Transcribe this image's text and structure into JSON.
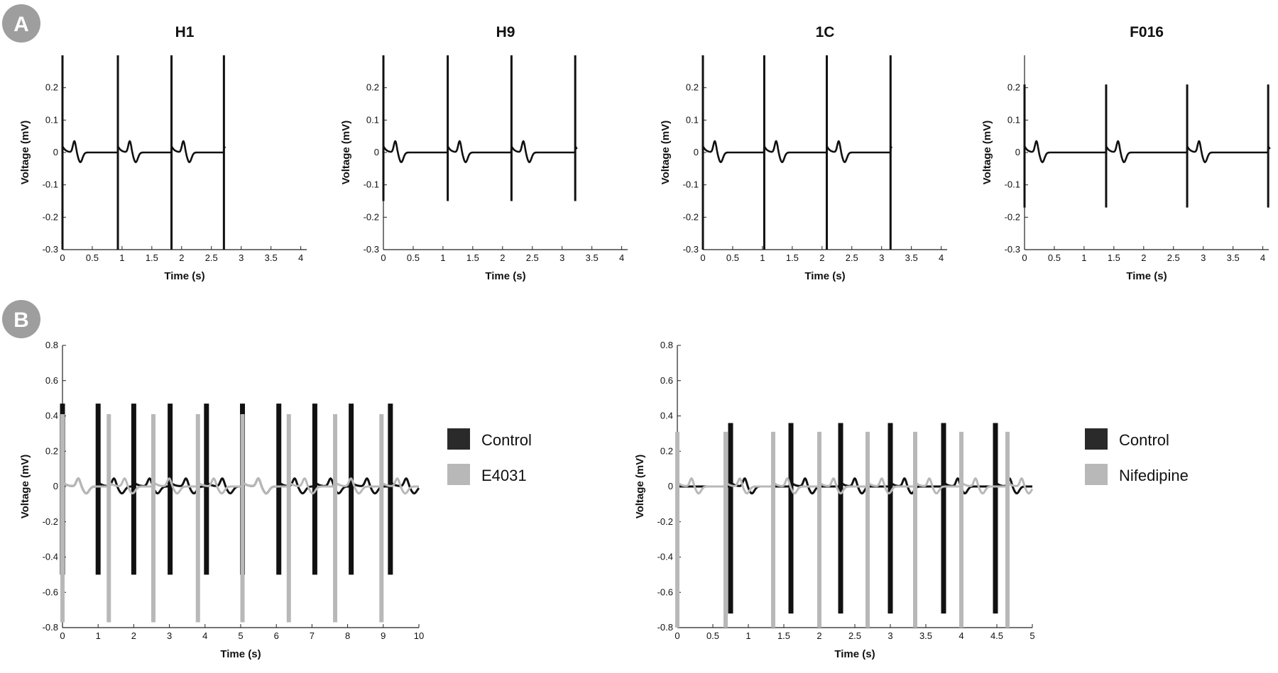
{
  "panels": {
    "A": {
      "label": "A"
    },
    "B": {
      "label": "B"
    }
  },
  "colors": {
    "trace": "#111111",
    "control": "#111111",
    "drug": "#b8b8b8",
    "badge": "#9e9e9e"
  },
  "chart_data": [
    {
      "type": "line",
      "panel": "A",
      "title": "H1",
      "xlabel": "Time (s)",
      "ylabel": "Voltage (mV)",
      "xlim": [
        0,
        4.1
      ],
      "ylim": [
        -0.3,
        0.3
      ],
      "xticks": [
        0,
        0.5,
        1,
        1.5,
        2,
        2.5,
        3,
        3.5,
        4
      ],
      "yticks": [
        -0.3,
        -0.2,
        -0.1,
        0,
        0.1,
        0.2
      ],
      "beats": [
        0,
        0.93,
        1.83,
        2.71
      ],
      "end": 2.73,
      "spike_high": 0.3,
      "spike_low": -0.3,
      "series": [
        {
          "values": "spiking field potential trace"
        }
      ]
    },
    {
      "type": "line",
      "panel": "A",
      "title": "H9",
      "xlabel": "Time (s)",
      "ylabel": "Voltage (mV)",
      "xlim": [
        0,
        4.1
      ],
      "ylim": [
        -0.3,
        0.3
      ],
      "xticks": [
        0,
        0.5,
        1,
        1.5,
        2,
        2.5,
        3,
        3.5,
        4
      ],
      "yticks": [
        -0.3,
        -0.2,
        -0.1,
        0,
        0.1,
        0.2
      ],
      "beats": [
        0,
        1.08,
        2.15,
        3.22
      ],
      "end": 3.25,
      "spike_high": 0.3,
      "spike_low": -0.15
    },
    {
      "type": "line",
      "panel": "A",
      "title": "1C",
      "xlabel": "Time (s)",
      "ylabel": "Voltage (mV)",
      "xlim": [
        0,
        4.1
      ],
      "ylim": [
        -0.3,
        0.3
      ],
      "xticks": [
        0,
        0.5,
        1,
        1.5,
        2,
        2.5,
        3,
        3.5,
        4
      ],
      "yticks": [
        -0.3,
        -0.2,
        -0.1,
        0,
        0.1,
        0.2
      ],
      "beats": [
        0,
        1.03,
        2.08,
        3.15
      ],
      "end": 3.17,
      "spike_high": 0.3,
      "spike_low": -0.3
    },
    {
      "type": "line",
      "panel": "A",
      "title": "F016",
      "xlabel": "Time (s)",
      "ylabel": "Voltage (mV)",
      "xlim": [
        0,
        4.1
      ],
      "ylim": [
        -0.3,
        0.3
      ],
      "xticks": [
        0,
        0.5,
        1,
        1.5,
        2,
        2.5,
        3,
        3.5,
        4
      ],
      "yticks": [
        -0.3,
        -0.2,
        -0.1,
        0,
        0.1,
        0.2
      ],
      "beats": [
        0,
        1.37,
        2.73,
        4.09
      ],
      "end": 4.12,
      "spike_high": 0.21,
      "spike_low": -0.17
    },
    {
      "type": "line",
      "panel": "B",
      "title": "",
      "xlabel": "Time (s)",
      "ylabel": "Voltage (mV)",
      "xlim": [
        0,
        10
      ],
      "ylim": [
        -0.8,
        0.8
      ],
      "xticks": [
        0,
        1,
        2,
        3,
        4,
        5,
        6,
        7,
        8,
        9,
        10
      ],
      "yticks": [
        -0.8,
        -0.6,
        -0.4,
        -0.2,
        0,
        0.2,
        0.4,
        0.6,
        0.8
      ],
      "legend": [
        "Control",
        "E4031"
      ],
      "series": [
        {
          "name": "Control",
          "beats": [
            0,
            1.0,
            2.0,
            3.02,
            4.04,
            5.05,
            6.07,
            7.08,
            8.1,
            9.2
          ],
          "high": 0.47,
          "low": -0.5
        },
        {
          "name": "E4031",
          "beats": [
            0,
            1.3,
            2.55,
            3.8,
            5.05,
            6.35,
            7.65,
            8.95
          ],
          "high": 0.41,
          "low": -0.77
        }
      ]
    },
    {
      "type": "line",
      "panel": "B",
      "title": "",
      "xlabel": "Time (s)",
      "ylabel": "Voltage (mV)",
      "xlim": [
        0,
        5
      ],
      "ylim": [
        -0.8,
        0.8
      ],
      "xticks": [
        0,
        0.5,
        1,
        1.5,
        2,
        2.5,
        3,
        3.5,
        4,
        4.5,
        5
      ],
      "yticks": [
        -0.8,
        -0.6,
        -0.4,
        -0.2,
        0,
        0.2,
        0.4,
        0.6,
        0.8
      ],
      "legend": [
        "Control",
        "Nifedipine"
      ],
      "series": [
        {
          "name": "Control",
          "beats": [
            0.75,
            1.6,
            2.3,
            3.0,
            3.75,
            4.48
          ],
          "high": 0.36,
          "low": -0.72
        },
        {
          "name": "Nifedipine",
          "beats": [
            0,
            0.68,
            1.35,
            2.0,
            2.68,
            3.35,
            4.0,
            4.65
          ],
          "high": 0.31,
          "low": -0.8
        }
      ]
    }
  ]
}
